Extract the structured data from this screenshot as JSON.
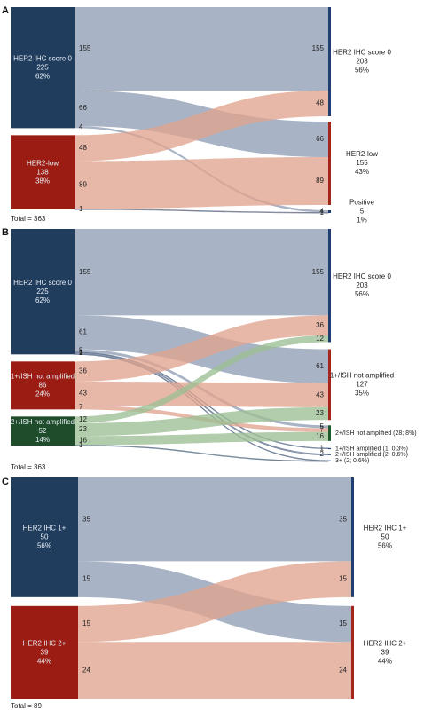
{
  "colors": {
    "navy": "#203d5e",
    "red": "#9b1c12",
    "green": "#1f4d2c",
    "flow_blue": "#8f9db5",
    "flow_salmon": "#e0a490",
    "flow_green": "#9cbf94",
    "bar_blue": "#1f3f73",
    "bar_red": "#a3251b",
    "bar_green": "#1f5a2c"
  },
  "panels": [
    {
      "letter": "A",
      "total": "Total = 363",
      "sources": [
        {
          "lines": [
            "HER2 IHC score 0",
            "225",
            "62%"
          ],
          "color": "navy"
        },
        {
          "lines": [
            "HER2-low",
            "138",
            "38%"
          ],
          "color": "red"
        }
      ],
      "flows": [
        {
          "from": 0,
          "to": 0,
          "value": 155,
          "left_label": "155",
          "right_label": "155",
          "color": "flow_blue"
        },
        {
          "from": 0,
          "to": 1,
          "value": 66,
          "left_label": "66",
          "right_label": "66",
          "color": "flow_blue"
        },
        {
          "from": 0,
          "to": 2,
          "value": 4,
          "left_label": "4",
          "right_label": "4",
          "color": "flow_blue"
        },
        {
          "from": 1,
          "to": 0,
          "value": 48,
          "left_label": "48",
          "right_label": "48",
          "color": "flow_salmon"
        },
        {
          "from": 1,
          "to": 1,
          "value": 89,
          "left_label": "89",
          "right_label": "89",
          "color": "flow_salmon"
        },
        {
          "from": 1,
          "to": 2,
          "value": 1,
          "left_label": "1",
          "right_label": "1",
          "color": "flow_salmon"
        }
      ],
      "targets": [
        {
          "lines": [
            "HER2 IHC score 0",
            "203",
            "56%"
          ],
          "bar": "bar_blue"
        },
        {
          "lines": [
            "HER2-low",
            "155",
            "43%"
          ],
          "bar": "bar_red"
        },
        {
          "lines": [
            "Positive",
            "5",
            "1%"
          ],
          "bar": "bar_blue"
        }
      ]
    },
    {
      "letter": "B",
      "total": "Total = 363",
      "sources": [
        {
          "lines": [
            "HER2 IHC score 0",
            "225",
            "62%"
          ],
          "color": "navy"
        },
        {
          "lines": [
            "1+/ISH not amplified",
            "86",
            "24%"
          ],
          "color": "red"
        },
        {
          "lines": [
            "2+/ISH not amplified",
            "52",
            "14%"
          ],
          "color": "green"
        }
      ],
      "flows": [
        {
          "from": 0,
          "to": 0,
          "value": 155,
          "left_label": "155",
          "right_label": "155",
          "color": "flow_blue"
        },
        {
          "from": 0,
          "to": 1,
          "value": 61,
          "left_label": "61",
          "right_label": "61",
          "color": "flow_blue"
        },
        {
          "from": 0,
          "to": 2,
          "value": 5,
          "left_label": "5",
          "right_label": "5",
          "color": "flow_blue"
        },
        {
          "from": 0,
          "to": 3,
          "value": 1,
          "left_label": "1",
          "right_label": "1",
          "color": "flow_blue"
        },
        {
          "from": 0,
          "to": 4,
          "value": 2,
          "left_label": "2",
          "right_label": "2",
          "color": "flow_blue"
        },
        {
          "from": 0,
          "to": 5,
          "value": 1,
          "left_label": "",
          "right_label": "",
          "color": "flow_blue"
        },
        {
          "from": 1,
          "to": 0,
          "value": 36,
          "left_label": "36",
          "right_label": "36",
          "color": "flow_salmon"
        },
        {
          "from": 1,
          "to": 1,
          "value": 43,
          "left_label": "43",
          "right_label": "43",
          "color": "flow_salmon"
        },
        {
          "from": 1,
          "to": 2,
          "value": 7,
          "left_label": "7",
          "right_label": "7",
          "color": "flow_salmon"
        },
        {
          "from": 2,
          "to": 0,
          "value": 12,
          "left_label": "12",
          "right_label": "12",
          "color": "flow_green"
        },
        {
          "from": 2,
          "to": 1,
          "value": 23,
          "left_label": "23",
          "right_label": "23",
          "color": "flow_green"
        },
        {
          "from": 2,
          "to": 2,
          "value": 16,
          "left_label": "16",
          "right_label": "16",
          "color": "flow_green"
        },
        {
          "from": 2,
          "to": 5,
          "value": 1,
          "left_label": "1",
          "right_label": "",
          "color": "flow_green"
        }
      ],
      "targets": [
        {
          "lines": [
            "HER2 IHC score 0",
            "203",
            "56%"
          ],
          "bar": "bar_blue"
        },
        {
          "lines": [
            "1+/ISH not amplified",
            "127",
            "35%"
          ],
          "bar": "bar_red"
        },
        {
          "lines": [
            "2+/ISH not amplified (28; 8%)"
          ],
          "bar": "bar_green"
        },
        {
          "lines": [
            "1+/ISH amplified (1; 0.3%)"
          ],
          "bar": "bar_blue"
        },
        {
          "lines": [
            "2+/ISH amplified (2; 0.6%)"
          ],
          "bar": "bar_blue"
        },
        {
          "lines": [
            "3+ (2; 0.6%)"
          ],
          "bar": "bar_blue"
        }
      ]
    },
    {
      "letter": "C",
      "total": "Total = 89",
      "sources": [
        {
          "lines": [
            "HER2 IHC 1+",
            "50",
            "56%"
          ],
          "color": "navy"
        },
        {
          "lines": [
            "HER2 IHC 2+",
            "39",
            "44%"
          ],
          "color": "red"
        }
      ],
      "flows": [
        {
          "from": 0,
          "to": 0,
          "value": 35,
          "left_label": "35",
          "right_label": "35",
          "color": "flow_blue"
        },
        {
          "from": 0,
          "to": 1,
          "value": 15,
          "left_label": "15",
          "right_label": "15",
          "color": "flow_blue"
        },
        {
          "from": 1,
          "to": 0,
          "value": 15,
          "left_label": "15",
          "right_label": "15",
          "color": "flow_salmon"
        },
        {
          "from": 1,
          "to": 1,
          "value": 24,
          "left_label": "24",
          "right_label": "24",
          "color": "flow_salmon"
        }
      ],
      "targets": [
        {
          "lines": [
            "HER2 IHC 1+",
            "50",
            "56%"
          ],
          "bar": "bar_blue"
        },
        {
          "lines": [
            "HER2 IHC 2+",
            "39",
            "44%"
          ],
          "bar": "bar_red"
        }
      ]
    }
  ]
}
